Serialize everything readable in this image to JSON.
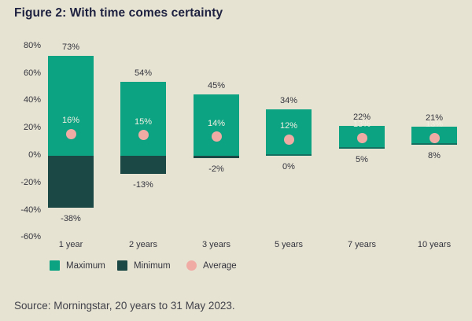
{
  "title": "Figure 2: With time comes certainty",
  "source_note": "Source: Morningstar, 20 years to 31 May 2023.",
  "colors": {
    "background": "#e6e3d2",
    "maximum": "#0ca383",
    "minimum": "#1b4744",
    "average": "#f1aba5",
    "title_text": "#1e2140",
    "label_text": "#34343e",
    "on_bar_text": "#f2efe2",
    "source_text": "#42424b"
  },
  "legend": {
    "items": [
      {
        "label": "Maximum",
        "swatch": "square",
        "color_key": "maximum"
      },
      {
        "label": "Minimum",
        "swatch": "square",
        "color_key": "minimum"
      },
      {
        "label": "Average",
        "swatch": "circle",
        "color_key": "average"
      }
    ]
  },
  "chart_data": {
    "type": "bar",
    "subtype": "floating-range-bars-with-average-markers",
    "title": "Figure 2: With time comes certainty",
    "categories": [
      "1 year",
      "2 years",
      "3 years",
      "5 years",
      "7 years",
      "10 years"
    ],
    "series": [
      {
        "name": "Maximum",
        "values": [
          73,
          54,
          45,
          34,
          22,
          21
        ]
      },
      {
        "name": "Minimum",
        "values": [
          -38,
          -13,
          -2,
          0,
          5,
          8
        ]
      },
      {
        "name": "Average",
        "values": [
          16,
          15,
          14,
          12,
          13,
          13
        ]
      }
    ],
    "value_suffix": "%",
    "ylim": [
      -60,
      80
    ],
    "ytick_values": [
      80,
      60,
      40,
      20,
      0,
      -20,
      -40,
      -60
    ],
    "ytick_labels": [
      "80%",
      "60%",
      "40%",
      "20%",
      "0%",
      "-20%",
      "-40%",
      "-60%"
    ],
    "grid": false,
    "legend_position": "bottom"
  }
}
